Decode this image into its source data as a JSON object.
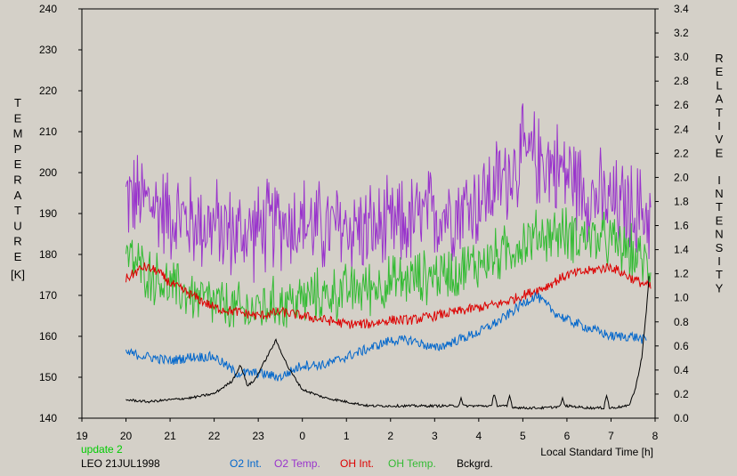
{
  "chart_data": {
    "type": "line",
    "left_axis_label": "TEMPERATURE",
    "left_axis_unit": "[K]",
    "right_axis_label": "RELATIVE INTENSITY",
    "xlabel": "Local Standard Time [h]",
    "x_ticks": [
      "19",
      "20",
      "21",
      "22",
      "23",
      "0",
      "1",
      "2",
      "3",
      "4",
      "5",
      "6",
      "7",
      "8"
    ],
    "left_ylim": [
      140,
      240
    ],
    "left_ticks": [
      140,
      150,
      160,
      170,
      180,
      190,
      200,
      210,
      220,
      230,
      240
    ],
    "right_ylim": [
      0.0,
      3.4
    ],
    "right_ticks": [
      "0.0",
      "0.2",
      "0.4",
      "0.6",
      "0.8",
      "1.0",
      "1.2",
      "1.4",
      "1.6",
      "1.8",
      "2.0",
      "2.2",
      "2.4",
      "2.6",
      "2.8",
      "3.0",
      "3.2",
      "3.4"
    ],
    "x_domain_hours_from_19": [
      0,
      13
    ],
    "series": [
      {
        "name": "O2 Temp.",
        "axis": "left",
        "color": "#9933cc",
        "noise": 14,
        "points": [
          [
            1.0,
            194
          ],
          [
            1.5,
            193
          ],
          [
            2.0,
            190
          ],
          [
            2.5,
            188
          ],
          [
            3.0,
            187
          ],
          [
            3.5,
            185
          ],
          [
            4.0,
            186
          ],
          [
            4.5,
            188
          ],
          [
            5.0,
            188
          ],
          [
            5.5,
            186
          ],
          [
            6.0,
            187
          ],
          [
            6.5,
            186
          ],
          [
            7.0,
            186
          ],
          [
            7.5,
            188
          ],
          [
            8.0,
            190
          ],
          [
            8.5,
            191
          ],
          [
            9.0,
            193
          ],
          [
            9.5,
            198
          ],
          [
            10.0,
            204
          ],
          [
            10.5,
            203
          ],
          [
            11.0,
            200
          ],
          [
            11.5,
            195
          ],
          [
            12.0,
            192
          ],
          [
            12.5,
            191
          ],
          [
            12.9,
            190
          ]
        ]
      },
      {
        "name": "OH Temp.",
        "axis": "left",
        "color": "#33bb33",
        "noise": 8,
        "points": [
          [
            1.0,
            180
          ],
          [
            1.3,
            177
          ],
          [
            1.7,
            174
          ],
          [
            2.0,
            172
          ],
          [
            2.5,
            170
          ],
          [
            3.0,
            168
          ],
          [
            3.3,
            167
          ],
          [
            3.7,
            166
          ],
          [
            4.0,
            167
          ],
          [
            4.5,
            168
          ],
          [
            5.0,
            169
          ],
          [
            5.5,
            170
          ],
          [
            6.0,
            171
          ],
          [
            6.5,
            172
          ],
          [
            7.0,
            173
          ],
          [
            7.5,
            174
          ],
          [
            8.0,
            175
          ],
          [
            8.5,
            176
          ],
          [
            9.0,
            178
          ],
          [
            9.5,
            180
          ],
          [
            10.0,
            183
          ],
          [
            10.5,
            185
          ],
          [
            11.0,
            185
          ],
          [
            11.5,
            184
          ],
          [
            12.0,
            183
          ],
          [
            12.5,
            180
          ],
          [
            12.9,
            177
          ]
        ]
      },
      {
        "name": "OH Int.",
        "axis": "left",
        "color": "#dd0000",
        "noise": 1.2,
        "points": [
          [
            1.0,
            174
          ],
          [
            1.4,
            177
          ],
          [
            1.7,
            176
          ],
          [
            2.0,
            173
          ],
          [
            2.5,
            170
          ],
          [
            3.0,
            167
          ],
          [
            3.5,
            166
          ],
          [
            4.0,
            165
          ],
          [
            4.5,
            166
          ],
          [
            5.0,
            165
          ],
          [
            5.5,
            164
          ],
          [
            6.0,
            163
          ],
          [
            6.5,
            163
          ],
          [
            7.0,
            164
          ],
          [
            7.5,
            164
          ],
          [
            8.0,
            165
          ],
          [
            8.5,
            166
          ],
          [
            9.0,
            167
          ],
          [
            9.5,
            168
          ],
          [
            10.0,
            170
          ],
          [
            10.5,
            172
          ],
          [
            11.0,
            175
          ],
          [
            11.5,
            176
          ],
          [
            12.0,
            177
          ],
          [
            12.5,
            174
          ],
          [
            12.9,
            172
          ]
        ]
      },
      {
        "name": "O2 Int.",
        "axis": "left",
        "color": "#0066cc",
        "noise": 1.2,
        "points": [
          [
            1.0,
            156
          ],
          [
            1.5,
            155
          ],
          [
            2.0,
            154
          ],
          [
            2.5,
            155
          ],
          [
            3.0,
            155
          ],
          [
            3.5,
            151
          ],
          [
            4.0,
            151
          ],
          [
            4.5,
            150
          ],
          [
            5.0,
            153
          ],
          [
            5.5,
            153
          ],
          [
            6.0,
            155
          ],
          [
            6.5,
            157
          ],
          [
            7.0,
            159
          ],
          [
            7.5,
            159
          ],
          [
            8.0,
            157
          ],
          [
            8.5,
            159
          ],
          [
            9.0,
            161
          ],
          [
            9.5,
            164
          ],
          [
            10.0,
            168
          ],
          [
            10.3,
            170
          ],
          [
            10.7,
            166
          ],
          [
            11.0,
            164
          ],
          [
            11.5,
            162
          ],
          [
            12.0,
            160
          ],
          [
            12.5,
            160
          ],
          [
            12.8,
            159
          ]
        ]
      },
      {
        "name": "Bckgrd.",
        "axis": "left",
        "color": "#000000",
        "noise": 0.3,
        "points": [
          [
            1.0,
            144.5
          ],
          [
            1.5,
            144
          ],
          [
            2.0,
            144.5
          ],
          [
            2.5,
            145
          ],
          [
            3.0,
            146
          ],
          [
            3.4,
            149
          ],
          [
            3.6,
            153
          ],
          [
            3.75,
            148
          ],
          [
            3.9,
            149
          ],
          [
            4.2,
            155
          ],
          [
            4.4,
            159
          ],
          [
            4.7,
            152
          ],
          [
            5.0,
            147
          ],
          [
            5.5,
            145
          ],
          [
            6.0,
            144
          ],
          [
            6.5,
            143
          ],
          [
            7.0,
            143
          ],
          [
            7.5,
            143
          ],
          [
            8.0,
            143
          ],
          [
            8.5,
            143
          ],
          [
            9.0,
            143
          ],
          [
            9.5,
            143
          ],
          [
            10.0,
            142.5
          ],
          [
            10.5,
            142.5
          ],
          [
            11.0,
            143
          ],
          [
            11.5,
            142.5
          ],
          [
            12.0,
            142.5
          ],
          [
            12.4,
            143
          ],
          [
            12.55,
            147
          ],
          [
            12.7,
            155
          ],
          [
            12.8,
            166
          ],
          [
            12.87,
            176
          ]
        ],
        "spikes": [
          [
            8.6,
            145
          ],
          [
            9.35,
            146
          ],
          [
            9.7,
            145.5
          ],
          [
            10.9,
            145
          ],
          [
            11.9,
            145.5
          ]
        ]
      }
    ],
    "footer": {
      "update": "update 2",
      "station": "LEO 21JUL1998",
      "legend": [
        "O2 Int.",
        "O2 Temp.",
        "OH Int.",
        "OH Temp.",
        "Bckgrd."
      ]
    },
    "colors": {
      "background": "#d4d0c8",
      "update_text": "#00cc00"
    }
  }
}
